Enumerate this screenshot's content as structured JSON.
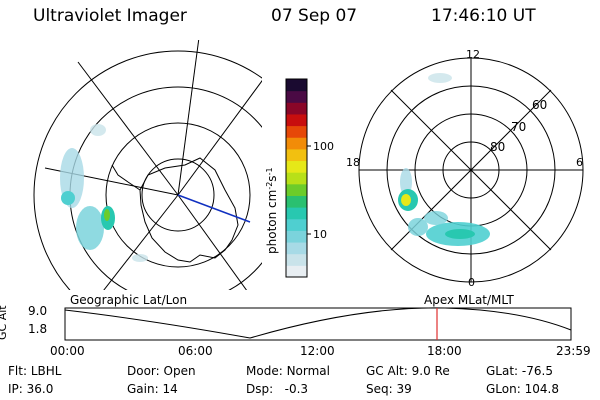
{
  "header": {
    "title": "Ultraviolet Imager",
    "date": "07 Sep 07",
    "time": "17:46:10 UT"
  },
  "colorbar": {
    "unit_label": "photon cm",
    "unit_sup1": "-2",
    "unit_mid": "s",
    "unit_sup2": "-1",
    "tick_100": "100",
    "tick_10": "10",
    "scale": "log",
    "colors": [
      "#e8eef2",
      "#c9e3ea",
      "#a7dae6",
      "#7bd3dc",
      "#4fcfd0",
      "#28c8b0",
      "#2ac070",
      "#6ccc2a",
      "#b8e018",
      "#e6e818",
      "#f2c010",
      "#f28c08",
      "#e64808",
      "#c80e0e",
      "#8a0628",
      "#4a0a44",
      "#1a0a30"
    ]
  },
  "left_panel": {
    "label": "Geographic Lat/Lon"
  },
  "right_panel": {
    "label": "Apex MLat/MLT",
    "mlt_labels": {
      "top": "12",
      "left": "18",
      "right": "6",
      "bottom": "0"
    },
    "mlat_labels": [
      "60",
      "70",
      "80"
    ]
  },
  "timeline": {
    "y_axis_label": "GC Alt",
    "y_ticks": [
      "9.0",
      "1.8"
    ],
    "x_ticks": [
      "00:00",
      "06:00",
      "12:00",
      "18:00",
      "23:59"
    ],
    "marker_color": "#e03030"
  },
  "info": {
    "flt_label": "Flt:",
    "flt_value": "LBHL",
    "door_label": "Door:",
    "door_value": "Open",
    "mode_label": "Mode:",
    "mode_value": "Normal",
    "gcalt_label": "GC Alt:",
    "gcalt_value": "9.0 Re",
    "glat_label": "GLat:",
    "glat_value": "-76.5",
    "ip_label": "IP:",
    "ip_value": "36.0",
    "gain_label": "Gain:",
    "gain_value": "14",
    "dsp_label": "Dsp:",
    "dsp_value": "-0.3",
    "seq_label": "Seq:",
    "seq_value": "39",
    "glon_label": "GLon:",
    "glon_value": "104.8"
  }
}
